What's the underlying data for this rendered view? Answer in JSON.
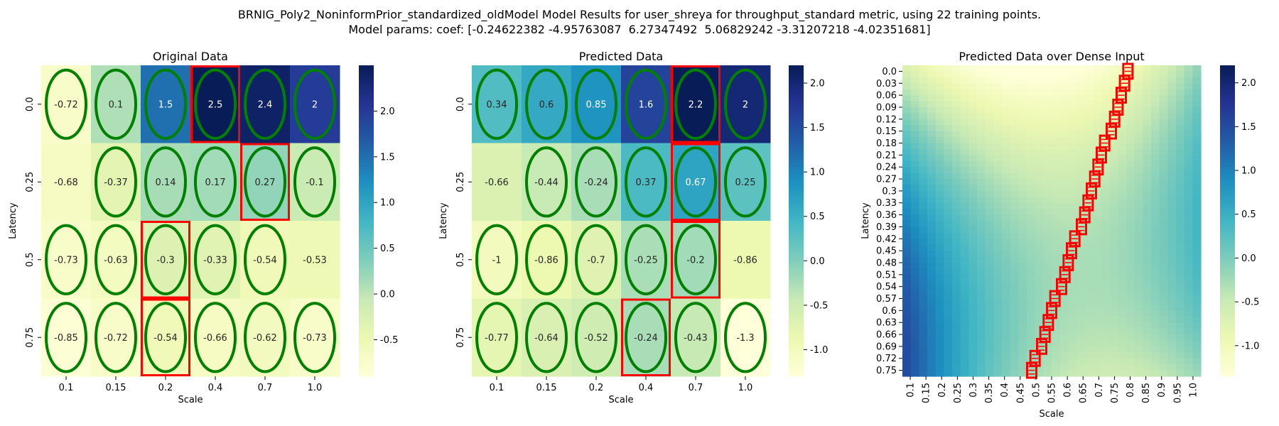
{
  "figure": {
    "title_line1": "BRNIG_Poly2_NoninformPrior_standardized_oldModel Model Results for user_shreya for throughput_standard metric, using 22 training points.",
    "title_line2": "Model params: coef: [-0.24622382 -4.95763087  6.27347492  5.06829242 -3.31207218 -4.02351681]"
  },
  "colors": {
    "colormap": "YlGnBu",
    "training_marker": "#008000",
    "highlight": "#ff0000"
  },
  "chart_data": [
    {
      "type": "heatmap",
      "title": "Original Data",
      "xlabel": "Scale",
      "ylabel": "Latency",
      "x_ticks": [
        "0.1",
        "0.15",
        "0.2",
        "0.4",
        "0.7",
        "1.0"
      ],
      "y_ticks": [
        "0.0",
        "0.25",
        "0.5",
        "0.75"
      ],
      "values": [
        [
          -0.72,
          0.1,
          1.5,
          2.5,
          2.4,
          2
        ],
        [
          -0.68,
          -0.37,
          0.14,
          0.17,
          0.27,
          -0.1
        ],
        [
          -0.73,
          -0.63,
          -0.3,
          -0.33,
          -0.54,
          -0.53
        ],
        [
          -0.85,
          -0.72,
          -0.54,
          -0.66,
          -0.62,
          -0.73
        ]
      ],
      "vmin": -0.9,
      "vmax": 2.5,
      "colorbar_ticks": [
        -0.5,
        0.0,
        0.5,
        1.0,
        1.5,
        2.0
      ],
      "training_points": [
        [
          0,
          0
        ],
        [
          0,
          1
        ],
        [
          0,
          2
        ],
        [
          0,
          3
        ],
        [
          0,
          4
        ],
        [
          0,
          5
        ],
        [
          1,
          1
        ],
        [
          1,
          2
        ],
        [
          1,
          3
        ],
        [
          1,
          4
        ],
        [
          1,
          5
        ],
        [
          2,
          0
        ],
        [
          2,
          1
        ],
        [
          2,
          2
        ],
        [
          2,
          3
        ],
        [
          2,
          4
        ],
        [
          3,
          0
        ],
        [
          3,
          1
        ],
        [
          3,
          2
        ],
        [
          3,
          3
        ],
        [
          3,
          4
        ],
        [
          3,
          5
        ]
      ],
      "highlighted": [
        [
          0,
          3
        ],
        [
          1,
          4
        ],
        [
          2,
          2
        ],
        [
          3,
          2
        ]
      ]
    },
    {
      "type": "heatmap",
      "title": "Predicted Data",
      "xlabel": "Scale",
      "ylabel": "Latency",
      "x_ticks": [
        "0.1",
        "0.15",
        "0.2",
        "0.4",
        "0.7",
        "1.0"
      ],
      "y_ticks": [
        "0.0",
        "0.25",
        "0.5",
        "0.75"
      ],
      "values": [
        [
          0.34,
          0.6,
          0.85,
          1.6,
          2.2,
          2
        ],
        [
          -0.66,
          -0.44,
          -0.24,
          0.37,
          0.67,
          0.25
        ],
        [
          -1,
          -0.86,
          -0.7,
          -0.25,
          -0.2,
          -0.86
        ],
        [
          -0.77,
          -0.64,
          -0.52,
          -0.24,
          -0.43,
          -1.3
        ]
      ],
      "vmin": -1.3,
      "vmax": 2.2,
      "colorbar_ticks": [
        -1.0,
        -0.5,
        0.0,
        0.5,
        1.0,
        1.5,
        2.0
      ],
      "training_points": [
        [
          0,
          0
        ],
        [
          0,
          1
        ],
        [
          0,
          2
        ],
        [
          0,
          3
        ],
        [
          0,
          4
        ],
        [
          0,
          5
        ],
        [
          1,
          1
        ],
        [
          1,
          2
        ],
        [
          1,
          3
        ],
        [
          1,
          4
        ],
        [
          1,
          5
        ],
        [
          2,
          0
        ],
        [
          2,
          1
        ],
        [
          2,
          2
        ],
        [
          2,
          3
        ],
        [
          2,
          4
        ],
        [
          3,
          0
        ],
        [
          3,
          1
        ],
        [
          3,
          2
        ],
        [
          3,
          3
        ],
        [
          3,
          4
        ],
        [
          3,
          5
        ]
      ],
      "highlighted": [
        [
          0,
          4
        ],
        [
          1,
          4
        ],
        [
          2,
          4
        ],
        [
          3,
          3
        ]
      ]
    },
    {
      "type": "heatmap",
      "title": "Predicted Data over Dense Input",
      "xlabel": "Scale",
      "ylabel": "Latency",
      "x_ticks": [
        "0.1",
        "0.15",
        "0.2",
        "0.25",
        "0.3",
        "0.35",
        "0.4",
        "0.45",
        "0.5",
        "0.55",
        "0.6",
        "0.65",
        "0.7",
        "0.75",
        "0.8",
        "0.85",
        "0.9",
        "0.95",
        "1.0"
      ],
      "y_ticks": [
        "0.0",
        "0.03",
        "0.06",
        "0.09",
        "0.12",
        "0.15",
        "0.18",
        "0.21",
        "0.24",
        "0.27",
        "0.3",
        "0.33",
        "0.36",
        "0.39",
        "0.42",
        "0.45",
        "0.48",
        "0.51",
        "0.54",
        "0.57",
        "0.6",
        "0.63",
        "0.66",
        "0.69",
        "0.72",
        "0.75"
      ],
      "model": "poly2",
      "coef": [
        -0.24622382,
        -4.95763087,
        6.27347492,
        5.06829242,
        -3.31207218,
        -4.02351681
      ],
      "x_range": [
        0.1,
        1.0
      ],
      "y_range": [
        0.0,
        0.75
      ],
      "vmin": -1.35,
      "vmax": 2.2,
      "colorbar_ticks": [
        -1.0,
        -0.5,
        0.0,
        0.5,
        1.0,
        1.5,
        2.0
      ],
      "highlight_path": [
        [
          0.0,
          0.78
        ],
        [
          0.03,
          0.77
        ],
        [
          0.06,
          0.76
        ],
        [
          0.09,
          0.75
        ],
        [
          0.12,
          0.74
        ],
        [
          0.15,
          0.73
        ],
        [
          0.18,
          0.71
        ],
        [
          0.21,
          0.7
        ],
        [
          0.24,
          0.69
        ],
        [
          0.27,
          0.68
        ],
        [
          0.3,
          0.67
        ],
        [
          0.33,
          0.66
        ],
        [
          0.36,
          0.65
        ],
        [
          0.39,
          0.64
        ],
        [
          0.42,
          0.62
        ],
        [
          0.45,
          0.61
        ],
        [
          0.48,
          0.6
        ],
        [
          0.51,
          0.59
        ],
        [
          0.54,
          0.58
        ],
        [
          0.57,
          0.56
        ],
        [
          0.6,
          0.55
        ],
        [
          0.63,
          0.54
        ],
        [
          0.66,
          0.53
        ],
        [
          0.69,
          0.52
        ],
        [
          0.72,
          0.5
        ],
        [
          0.75,
          0.49
        ]
      ]
    }
  ]
}
